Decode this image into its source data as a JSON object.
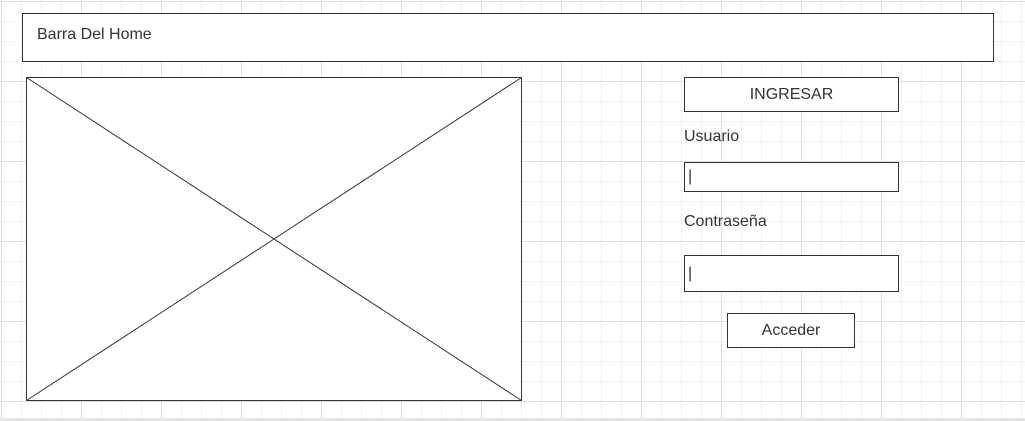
{
  "header": {
    "title": "Barra Del Home"
  },
  "login": {
    "heading": "INGRESAR",
    "user_label": "Usuario",
    "user_value": "|",
    "password_label": "Contraseña",
    "password_value": "|",
    "submit_label": "Acceder"
  }
}
